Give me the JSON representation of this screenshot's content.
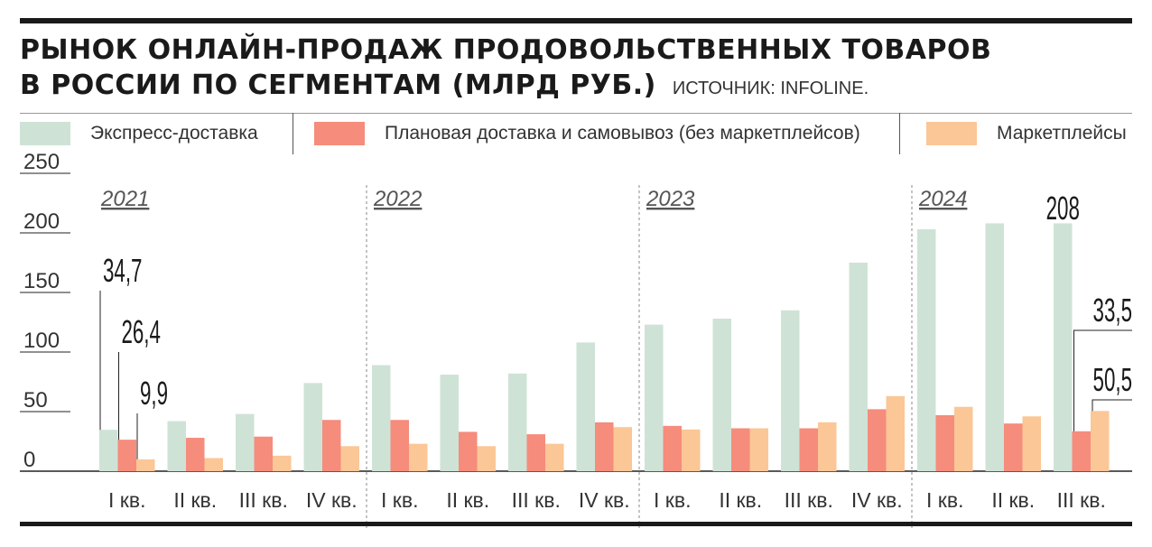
{
  "title": {
    "line1": "РЫНОК ОНЛАЙН-ПРОДАЖ ПРОДОВОЛЬСТВЕННЫХ ТОВАРОВ",
    "line2": "В РОССИИ ПО СЕГМЕНТАМ (МЛРД РУБ.)",
    "source": "ИСТОЧНИК: INFOLINE."
  },
  "colors": {
    "express": "#cfe2d6",
    "planned": "#f58c7c",
    "marketplace": "#fbc796",
    "axis": "#222222",
    "divider": "#8a8a8a"
  },
  "chart_data": {
    "type": "bar",
    "ylim": [
      0,
      250
    ],
    "yticks": [
      "0",
      "50",
      "100",
      "150",
      "200",
      "250"
    ],
    "grid": false,
    "legend_position": "top",
    "categories": [
      "I кв.",
      "II кв.",
      "III кв.",
      "IV кв.",
      "I кв.",
      "II кв.",
      "III кв.",
      "IV кв.",
      "I кв.",
      "II кв.",
      "III кв.",
      "IV кв.",
      "I кв.",
      "II кв.",
      "III кв."
    ],
    "years": [
      {
        "label": "2021",
        "first": 0,
        "count": 4
      },
      {
        "label": "2022",
        "first": 4,
        "count": 4
      },
      {
        "label": "2023",
        "first": 8,
        "count": 4
      },
      {
        "label": "2024",
        "first": 12,
        "count": 3
      }
    ],
    "series": [
      {
        "name": "Экспресс-доставка",
        "key": "express",
        "values": [
          34.7,
          42,
          48,
          74,
          89,
          81,
          82,
          108,
          123,
          128,
          135,
          175,
          203,
          208,
          208
        ]
      },
      {
        "name": "Плановая доставка и самовывоз (без маркетплейсов)",
        "key": "planned",
        "values": [
          26.4,
          28,
          29,
          43,
          43,
          33,
          31,
          41,
          38,
          36,
          36,
          52,
          47,
          40,
          33.5
        ]
      },
      {
        "name": "Маркетплейсы",
        "key": "marketplace",
        "values": [
          9.9,
          11,
          13,
          21,
          23,
          21,
          23,
          37,
          35,
          36,
          41,
          63,
          54,
          46,
          50.5
        ]
      }
    ],
    "annotations": [
      {
        "text": "34,7",
        "index": 0,
        "series": 0,
        "value": 34.7
      },
      {
        "text": "26,4",
        "index": 0,
        "series": 1,
        "value": 26.4
      },
      {
        "text": "9,9",
        "index": 0,
        "series": 2,
        "value": 9.9
      },
      {
        "text": "208",
        "index": 14,
        "series": 0,
        "value": 208
      },
      {
        "text": "33,5",
        "index": 14,
        "series": 1,
        "value": 33.5
      },
      {
        "text": "50,5",
        "index": 14,
        "series": 2,
        "value": 50.5
      }
    ]
  }
}
